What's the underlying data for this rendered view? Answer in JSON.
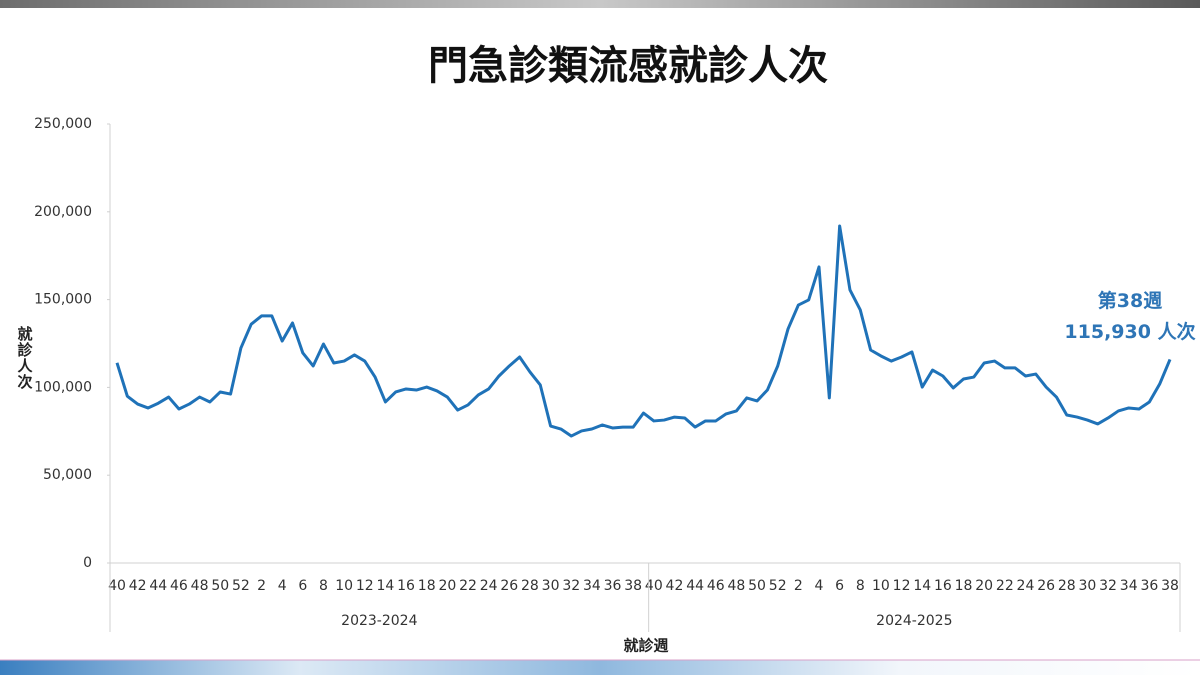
{
  "chart_data": {
    "type": "line",
    "title": "門急診類流感就診人次",
    "y_label": "就診人次",
    "x_label": "就診週",
    "groups": [
      {
        "label": "2023-2024",
        "categories": [
          "40",
          null,
          "42",
          null,
          "44",
          null,
          "46",
          null,
          "48",
          null,
          "50",
          null,
          "52",
          null,
          "2",
          null,
          "4",
          null,
          "6",
          null,
          "8",
          null,
          "10",
          null,
          "12",
          null,
          "14",
          null,
          "16",
          null,
          "18",
          null,
          "20",
          null,
          "22",
          null,
          "24",
          null,
          "26",
          null,
          "28",
          null,
          "30",
          null,
          "32",
          null,
          "34",
          null,
          "36",
          null,
          "38",
          null
        ]
      },
      {
        "label": "2024-2025",
        "categories": [
          "40",
          null,
          "42",
          null,
          "44",
          null,
          "46",
          null,
          "48",
          null,
          "50",
          null,
          "52",
          null,
          "2",
          null,
          "4",
          null,
          "6",
          null,
          "8",
          null,
          "10",
          null,
          "12",
          null,
          "14",
          null,
          "16",
          null,
          "18",
          null,
          "20",
          null,
          "22",
          null,
          "24",
          null,
          "26",
          null,
          "28",
          null,
          "30",
          null,
          "32",
          null,
          "34",
          null,
          "36",
          null,
          "38"
        ]
      }
    ],
    "values": [
      114000,
      95000,
      90500,
      88300,
      91000,
      94500,
      87700,
      90500,
      94500,
      91700,
      97400,
      96200,
      122400,
      136000,
      140700,
      140700,
      126400,
      136700,
      119600,
      112200,
      124700,
      113900,
      115000,
      118500,
      115000,
      105900,
      91700,
      97400,
      99100,
      98500,
      100200,
      98000,
      94500,
      87100,
      90000,
      95700,
      99100,
      106500,
      112200,
      117300,
      108800,
      101400,
      78000,
      76300,
      72300,
      75200,
      76300,
      78600,
      76900,
      77400,
      77400,
      85400,
      80900,
      81400,
      83100,
      82600,
      77400,
      80900,
      80900,
      84900,
      86600,
      94000,
      92300,
      98500,
      112200,
      133300,
      146900,
      149800,
      168600,
      94000,
      191900,
      155500,
      144100,
      121300,
      117900,
      115000,
      117300,
      120200,
      100200,
      109900,
      106500,
      99700,
      104800,
      105900,
      113900,
      115000,
      111100,
      111100,
      106500,
      107600,
      100200,
      94500,
      84300,
      83100,
      81400,
      79200,
      82600,
      86600,
      88300,
      87700,
      91700,
      101900,
      115930
    ],
    "color": "#1f72b8",
    "annotation": [
      "第38週",
      "115,930 人次"
    ],
    "annotation_color": "#2e75b6",
    "ylim": [
      0,
      250000
    ],
    "yticks": [
      0,
      {
        "value": 50000,
        "label": "50,000"
      },
      {
        "value": 100000,
        "label": "100,000"
      },
      {
        "value": 150000,
        "label": "150,000"
      },
      {
        "value": 200000,
        "label": "200,000"
      },
      {
        "value": 250000,
        "label": "250,000"
      }
    ],
    "grid": false
  }
}
